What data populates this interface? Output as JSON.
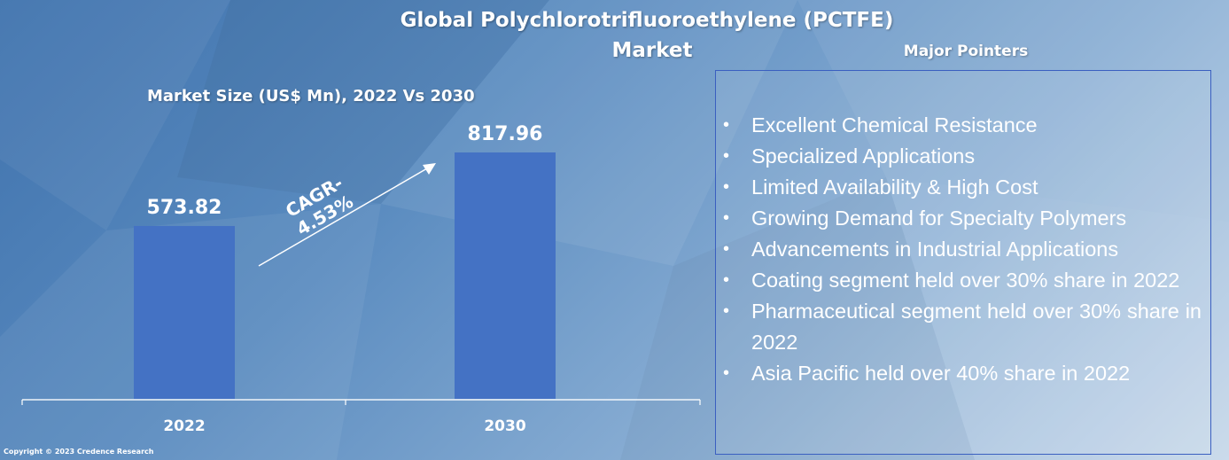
{
  "title_line1": "Global Polychlorotrifluoroethylene (PCTFE)",
  "title_line2": "Market",
  "subtitle": "Market Size (US$ Mn), 2022 Vs 2030",
  "copyright": "Copyright © 2023 Credence Research",
  "pointers": {
    "title": "Major Pointers",
    "items": [
      "Excellent Chemical Resistance",
      "Specialized Applications",
      "Limited Availability & High Cost",
      "Growing Demand for Specialty Polymers",
      "Advancements in Industrial Applications",
      "Coating segment held over 30% share in 2022",
      "Pharmaceutical segment held over 30% share in 2022",
      "Asia Pacific held over 40% share in 2022"
    ]
  },
  "colors": {
    "bar": "#4472c4",
    "text": "#ffffff"
  },
  "chart_data": {
    "type": "bar",
    "categories": [
      "2022",
      "2030"
    ],
    "values": [
      573.82,
      817.96
    ],
    "value_labels": [
      "573.82",
      "817.96"
    ],
    "title": "Market Size (US$ Mn), 2022 Vs 2030",
    "annotation": [
      "CAGR-",
      "4.53%"
    ]
  }
}
